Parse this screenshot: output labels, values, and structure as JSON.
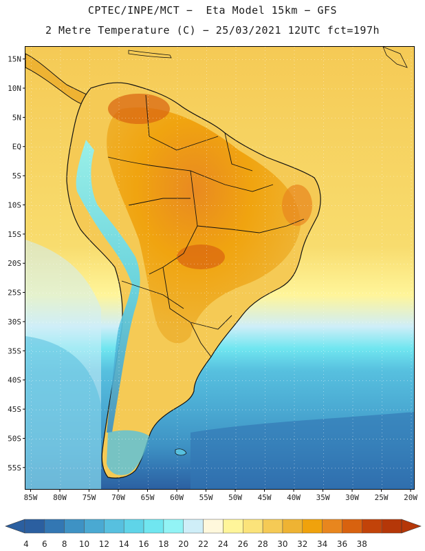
{
  "header": {
    "line1": "CPTEC/INPE/MCT −  Eta Model 15km − GFS",
    "line2": "2 Metre Temperature (C) − 25/03/2021 12UTC fct=197h"
  },
  "map": {
    "lat_labels": [
      "15N",
      "10N",
      "5N",
      "EQ",
      "5S",
      "10S",
      "15S",
      "20S",
      "25S",
      "30S",
      "35S",
      "40S",
      "45S",
      "50S",
      "55S"
    ],
    "lon_labels": [
      "85W",
      "80W",
      "75W",
      "70W",
      "65W",
      "60W",
      "55W",
      "50W",
      "45W",
      "40W",
      "35W",
      "30W",
      "25W",
      "20W"
    ]
  },
  "colorbar": {
    "labels": [
      "4",
      "6",
      "8",
      "10",
      "12",
      "14",
      "16",
      "18",
      "20",
      "22",
      "24",
      "26",
      "28",
      "30",
      "32",
      "34",
      "36",
      "38"
    ],
    "colors": [
      "#2b5fa0",
      "#3377b3",
      "#3e92c4",
      "#4aa9d2",
      "#57c0df",
      "#5fd4e8",
      "#70e6f0",
      "#92f3f5",
      "#cfeef8",
      "#fff8dc",
      "#fff59a",
      "#fbe37a",
      "#f5ca55",
      "#eeb333",
      "#f0a20c",
      "#e8861e",
      "#d8620f",
      "#c24309",
      "#b53708"
    ],
    "left_arrow_color": "#2b5fa0",
    "right_arrow_color": "#b53708"
  }
}
